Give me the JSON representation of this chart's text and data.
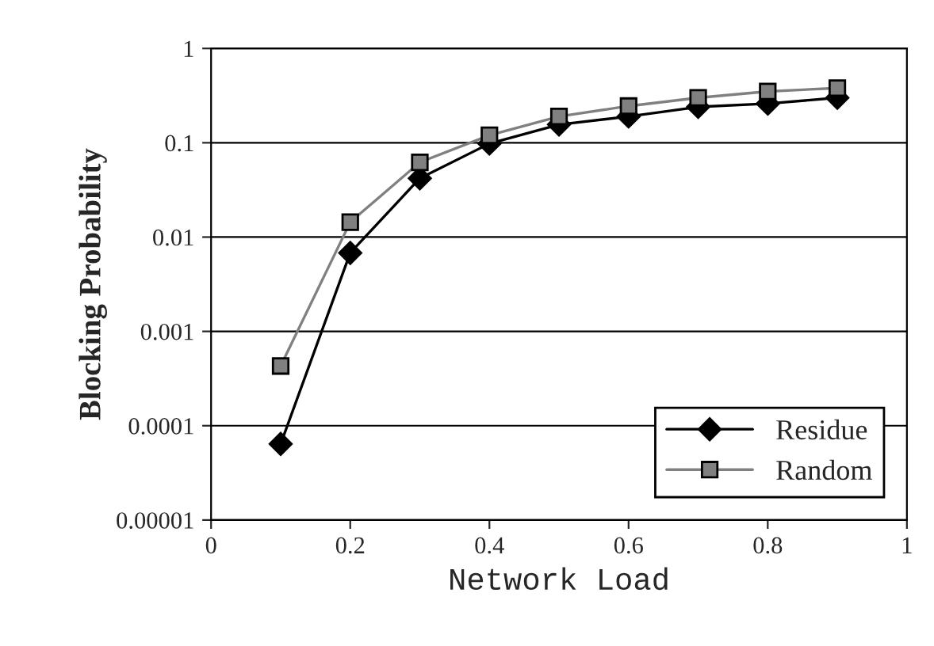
{
  "chart_data": {
    "type": "line",
    "xlabel": "Network Load",
    "ylabel": "Blocking Probability",
    "x": [
      0.1,
      0.2,
      0.3,
      0.4,
      0.5,
      0.6,
      0.7,
      0.8,
      0.9
    ],
    "series": [
      {
        "name": "Residue",
        "color": "#000000",
        "marker": "diamond",
        "values": [
          6.4e-05,
          0.0068,
          0.042,
          0.098,
          0.156,
          0.19,
          0.24,
          0.26,
          0.3
        ]
      },
      {
        "name": "Random",
        "color": "#808080",
        "marker": "square",
        "values": [
          0.00043,
          0.0144,
          0.062,
          0.12,
          0.19,
          0.245,
          0.3,
          0.35,
          0.38
        ]
      }
    ],
    "log": "y",
    "xlim": [
      0,
      1
    ],
    "xticks": [
      0,
      0.2,
      0.4,
      0.6,
      0.8,
      1
    ],
    "ylim": [
      1e-05,
      1
    ],
    "yticks": [
      {
        "value": 1e-05,
        "label": "0.00001"
      },
      {
        "value": 0.0001,
        "label": "0.0001"
      },
      {
        "value": 0.001,
        "label": "0.001"
      },
      {
        "value": 0.01,
        "label": "0.01"
      },
      {
        "value": 0.1,
        "label": "0.1"
      },
      1
    ],
    "grid": "y",
    "legend": "bottom right",
    "line_style": "solid"
  }
}
